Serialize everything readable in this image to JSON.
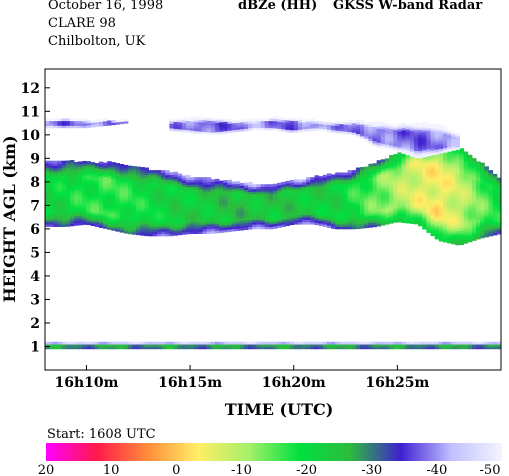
{
  "header": {
    "date": "October 16, 1998",
    "campaign": "CLARE 98",
    "location": "Chilbolton, UK",
    "product": "dBZe (HH)",
    "instrument": "GKSS  W-band Radar"
  },
  "chart_data": {
    "type": "heatmap",
    "xlabel": "TIME (UTC)",
    "ylabel": "HEIGHT AGL (km)",
    "x_tick_labels": [
      "16h10m",
      "16h15m",
      "16h20m",
      "16h25m"
    ],
    "x_tick_minutes": [
      10,
      15,
      20,
      25
    ],
    "xlim_minutes": [
      8,
      30
    ],
    "y_ticks": [
      "1",
      "2",
      "3",
      "4",
      "5",
      "6",
      "7",
      "8",
      "9",
      "10",
      "11",
      "12"
    ],
    "ylim_km": [
      0,
      12.8
    ],
    "start_label": "Start: 1608 UTC",
    "colorbar": {
      "tick_labels": [
        "20",
        "10",
        "0",
        "-10",
        "-20",
        "-30",
        "-40",
        "-50"
      ],
      "range_dbz": [
        20,
        -50
      ],
      "stops": [
        "#ff00ff",
        "#ff1a4a",
        "#ff8c3a",
        "#ffee66",
        "#a6f06a",
        "#00e040",
        "#2dbb3e",
        "#4020d0",
        "#c0c0ff",
        "#f4f4ff"
      ]
    },
    "echo_layers": [
      {
        "name": "main cloud (km)",
        "t_min": [
          8.0,
          9.0,
          10.0,
          11.0,
          12.0,
          13.0,
          14.0,
          15.0,
          16.0,
          17.0,
          18.0,
          19.0,
          20.0,
          21.0,
          22.0,
          23.0,
          24.0,
          25.0,
          26.0,
          27.0,
          28.0,
          29.0,
          30.0
        ],
        "base_km": [
          6.1,
          6.1,
          6.2,
          6.0,
          5.8,
          5.7,
          5.7,
          5.8,
          5.8,
          5.9,
          6.0,
          6.0,
          6.2,
          6.2,
          6.0,
          6.0,
          6.1,
          6.3,
          6.2,
          5.5,
          5.3,
          5.6,
          5.8
        ],
        "top_km": [
          8.9,
          8.9,
          8.8,
          8.8,
          8.7,
          8.5,
          8.4,
          8.2,
          8.1,
          8.0,
          7.9,
          7.9,
          8.0,
          8.2,
          8.3,
          8.5,
          8.8,
          9.2,
          9.6,
          9.7,
          9.4,
          8.8,
          8.1
        ],
        "core_dbz": [
          -22,
          -20,
          -18,
          -17,
          -18,
          -20,
          -22,
          -23,
          -24,
          -25,
          -25,
          -24,
          -24,
          -23,
          -22,
          -18,
          -14,
          -10,
          -6,
          -4,
          -8,
          -14,
          -20
        ]
      },
      {
        "name": "upper cirrus (km)",
        "t_min": [
          8.0,
          9.0,
          10.0,
          11.0,
          12.0
        ],
        "base_km": [
          10.3,
          10.3,
          10.3,
          10.4,
          10.5
        ],
        "top_km": [
          10.6,
          10.7,
          10.6,
          10.6,
          10.6
        ],
        "core_dbz": [
          -40,
          -38,
          -38,
          -39,
          -40
        ]
      },
      {
        "name": "upper cirrus 2 (km)",
        "t_min": [
          14.0,
          15.0,
          16.0,
          17.0,
          18.0,
          19.0,
          20.0,
          21.0,
          22.0,
          23.0,
          24.0,
          25.0,
          26.0,
          27.0,
          28.0
        ],
        "base_km": [
          10.2,
          10.1,
          10.0,
          10.1,
          10.2,
          10.2,
          10.1,
          10.2,
          10.1,
          10.0,
          9.5,
          9.3,
          9.0,
          9.2,
          9.4
        ],
        "top_km": [
          10.6,
          10.7,
          10.7,
          10.6,
          10.6,
          10.7,
          10.7,
          10.6,
          10.5,
          10.6,
          10.5,
          10.4,
          10.5,
          10.4,
          10.0
        ],
        "core_dbz": [
          -40,
          -38,
          -37,
          -38,
          -40,
          -39,
          -38,
          -39,
          -40,
          -39,
          -38,
          -38,
          -38,
          -39,
          -40
        ]
      },
      {
        "name": "surface echo (km)",
        "t_min": [
          8.0,
          30.0
        ],
        "base_km": [
          0.9,
          0.9
        ],
        "top_km": [
          1.15,
          1.15
        ],
        "core_dbz": [
          -28,
          -28
        ]
      }
    ]
  }
}
